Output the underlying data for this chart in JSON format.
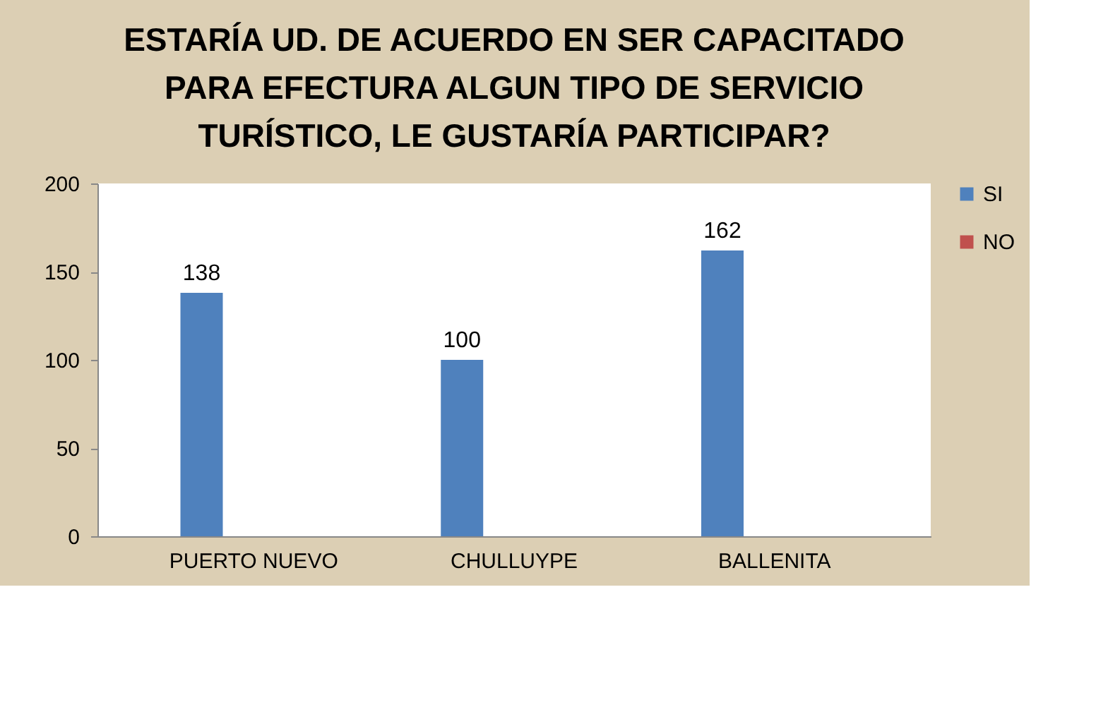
{
  "chart_data": {
    "type": "bar",
    "title": [
      "ESTARÍA UD. DE ACUERDO EN SER CAPACITADO",
      "PARA EFECTURA ALGUN TIPO DE SERVICIO",
      "TURÍSTICO, LE GUSTARÍA PARTICIPAR?"
    ],
    "categories": [
      "PUERTO NUEVO",
      "CHULLUYPE",
      "BALLENITA"
    ],
    "series": [
      {
        "name": "SI",
        "color": "#4f81bd",
        "values": [
          138,
          100,
          162
        ]
      },
      {
        "name": "NO",
        "color": "#c0504d",
        "values": [
          null,
          null,
          null
        ]
      }
    ],
    "ylim": [
      0,
      200
    ],
    "yticks": [
      0,
      50,
      100,
      150,
      200
    ],
    "grid": false,
    "legend": "right",
    "data_labels": true
  }
}
